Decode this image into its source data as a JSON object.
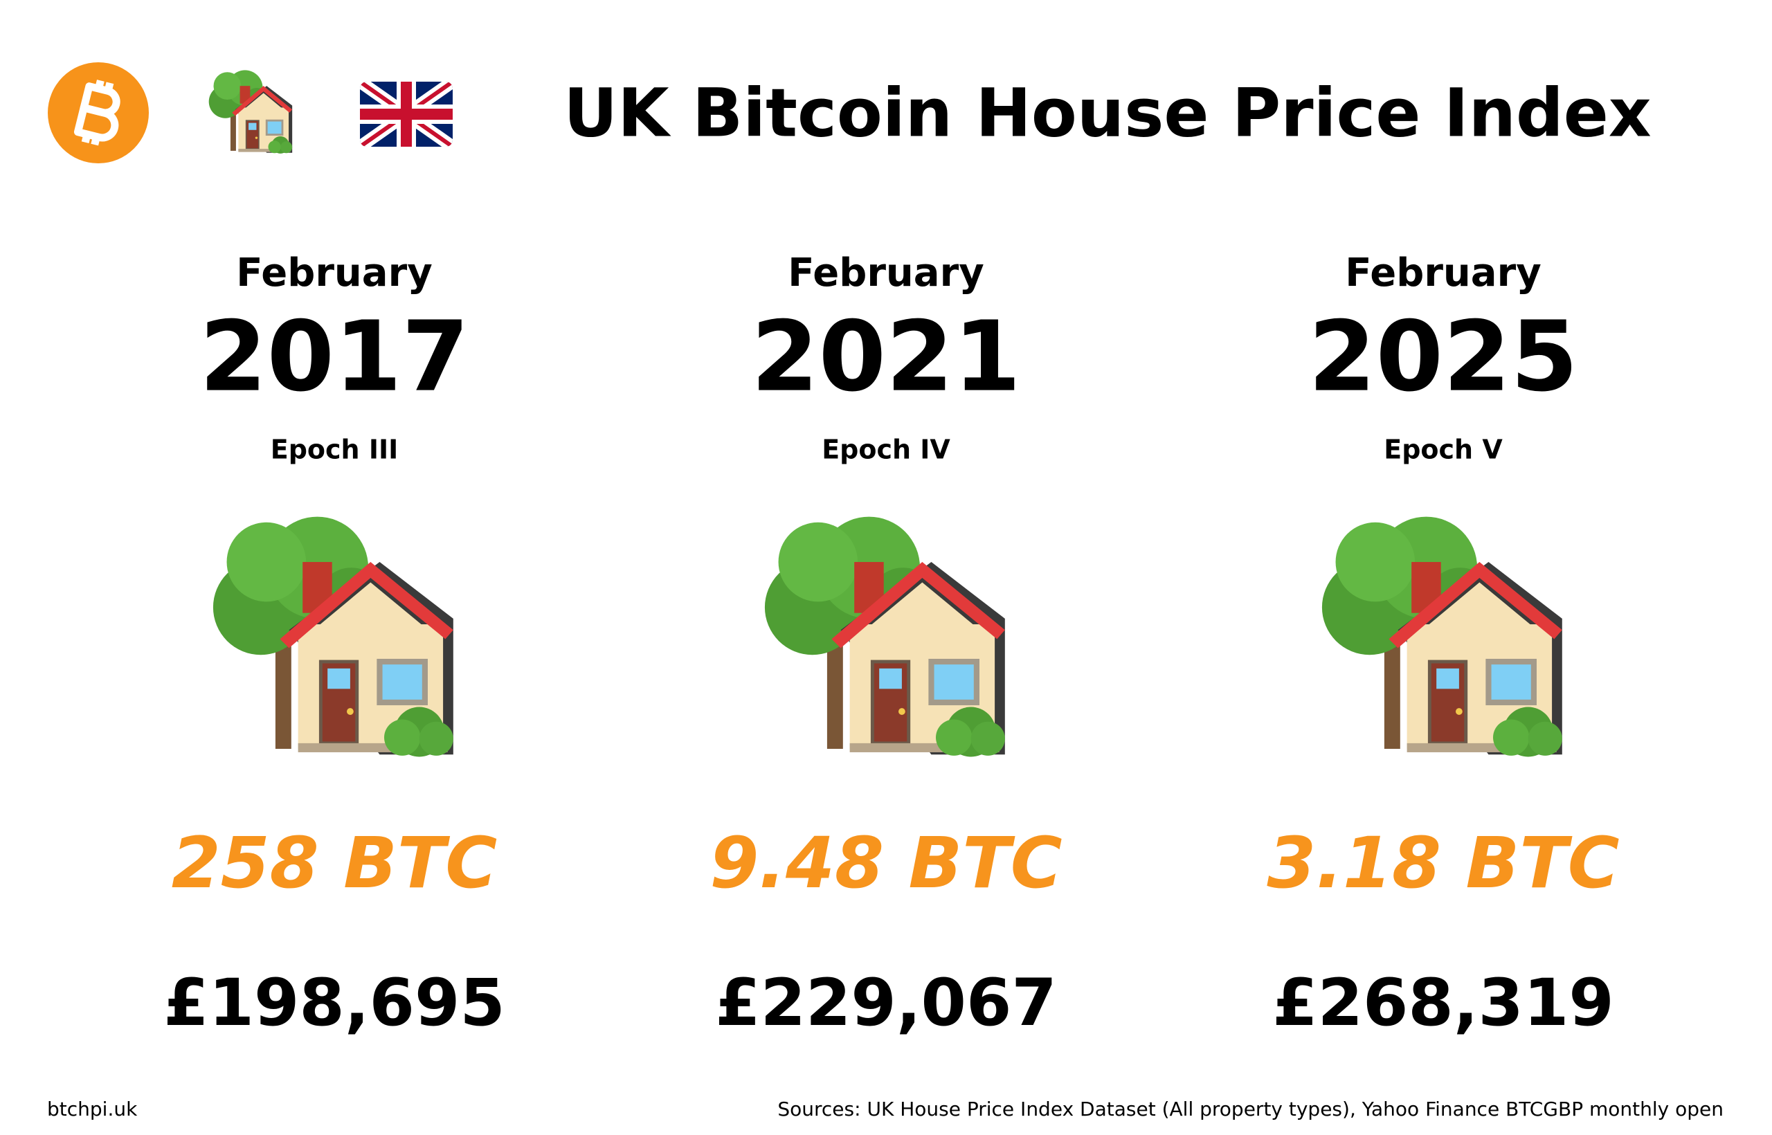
{
  "header": {
    "title": "UK Bitcoin House Price Index"
  },
  "columns": [
    {
      "month": "February",
      "year": "2017",
      "epoch": "Epoch III",
      "btc": "258 BTC",
      "gbp": "£198,695"
    },
    {
      "month": "February",
      "year": "2021",
      "epoch": "Epoch IV",
      "btc": "9.48 BTC",
      "gbp": "£229,067"
    },
    {
      "month": "February",
      "year": "2025",
      "epoch": "Epoch V",
      "btc": "3.18 BTC",
      "gbp": "£268,319"
    }
  ],
  "footer": {
    "site": "btchpi.uk",
    "sources": "Sources: UK House Price Index Dataset (All property types), Yahoo Finance BTCGBP monthly open"
  }
}
